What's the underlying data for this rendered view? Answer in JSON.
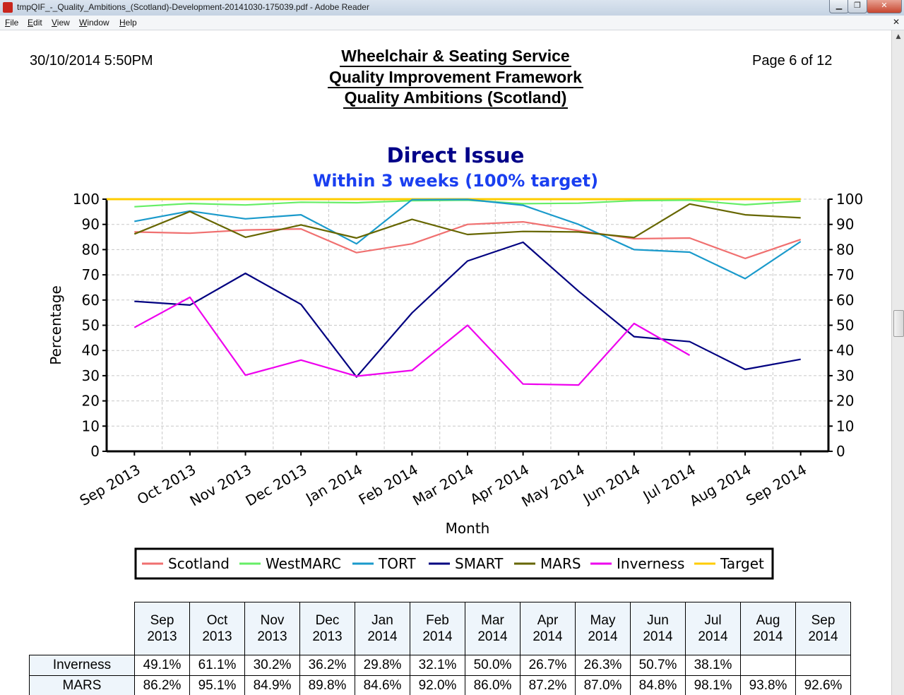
{
  "window": {
    "title": "tmpQIF_-_Quality_Ambitions_(Scotland)-Development-20141030-175039.pdf - Adobe Reader",
    "controls": {
      "minimize": "▁",
      "maximize": "❐",
      "close": "✕"
    }
  },
  "menubar": {
    "items": [
      "File",
      "Edit",
      "View",
      "Window",
      "Help"
    ]
  },
  "document": {
    "datetime": "30/10/2014 5:50PM",
    "page_info": "Page 6 of 12",
    "title_lines": [
      "Wheelchair & Seating Service",
      "Quality Improvement Framework",
      "Quality Ambitions (Scotland)"
    ]
  },
  "chart_data": {
    "type": "line",
    "title": "Direct Issue",
    "subtitle": "Within 3 weeks (100% target)",
    "xlabel": "Month",
    "ylabel": "Percentage",
    "ylim": [
      0,
      100
    ],
    "yticks": [
      0,
      10,
      20,
      30,
      40,
      50,
      60,
      70,
      80,
      90,
      100
    ],
    "grid": true,
    "legend_position": "bottom",
    "categories": [
      "Sep 2013",
      "Oct 2013",
      "Nov 2013",
      "Dec 2013",
      "Jan 2014",
      "Feb 2014",
      "Mar 2014",
      "Apr 2014",
      "May 2014",
      "Jun 2014",
      "Jul 2014",
      "Aug 2014",
      "Sep 2014"
    ],
    "series": [
      {
        "name": "Scotland",
        "color": "#f07070",
        "values": [
          87.0,
          86.5,
          87.8,
          88.2,
          78.8,
          82.3,
          90.0,
          91.0,
          87.5,
          84.3,
          84.6,
          76.5,
          84.0
        ]
      },
      {
        "name": "WestMARC",
        "color": "#66ee66",
        "values": [
          97.0,
          98.3,
          97.7,
          98.8,
          98.6,
          99.4,
          99.6,
          98.2,
          98.4,
          99.4,
          99.6,
          97.8,
          99.2
        ]
      },
      {
        "name": "TORT",
        "color": "#1a9acb",
        "values": [
          91.2,
          95.3,
          92.2,
          93.8,
          82.3,
          99.8,
          99.9,
          97.6,
          90.0,
          80.0,
          79.0,
          68.5,
          83.2
        ]
      },
      {
        "name": "SMART",
        "color": "#000080",
        "values": [
          59.5,
          58.0,
          70.6,
          58.3,
          29.5,
          54.9,
          75.5,
          82.9,
          63.5,
          45.5,
          43.5,
          32.5,
          36.5
        ]
      },
      {
        "name": "MARS",
        "color": "#666600",
        "values": [
          86.2,
          95.1,
          84.9,
          89.8,
          84.6,
          92.0,
          86.0,
          87.2,
          87.0,
          84.8,
          98.1,
          93.8,
          92.6
        ]
      },
      {
        "name": "Inverness",
        "color": "#ee00ee",
        "values": [
          49.1,
          61.1,
          30.2,
          36.2,
          29.8,
          32.1,
          50.0,
          26.7,
          26.3,
          50.7,
          38.1,
          null,
          null
        ]
      },
      {
        "name": "Target",
        "color": "#ffcc00",
        "values": [
          100,
          100,
          100,
          100,
          100,
          100,
          100,
          100,
          100,
          100,
          100,
          100,
          100
        ]
      }
    ]
  },
  "table": {
    "months": [
      [
        "Sep",
        "2013"
      ],
      [
        "Oct",
        "2013"
      ],
      [
        "Nov",
        "2013"
      ],
      [
        "Dec",
        "2013"
      ],
      [
        "Jan",
        "2014"
      ],
      [
        "Feb",
        "2014"
      ],
      [
        "Mar",
        "2014"
      ],
      [
        "Apr",
        "2014"
      ],
      [
        "May",
        "2014"
      ],
      [
        "Jun",
        "2014"
      ],
      [
        "Jul",
        "2014"
      ],
      [
        "Aug",
        "2014"
      ],
      [
        "Sep",
        "2014"
      ]
    ],
    "rows": [
      {
        "label": "Inverness",
        "cells": [
          "49.1%",
          "61.1%",
          "30.2%",
          "36.2%",
          "29.8%",
          "32.1%",
          "50.0%",
          "26.7%",
          "26.3%",
          "50.7%",
          "38.1%",
          "",
          ""
        ]
      },
      {
        "label": "MARS",
        "cells": [
          "86.2%",
          "95.1%",
          "84.9%",
          "89.8%",
          "84.6%",
          "92.0%",
          "86.0%",
          "87.2%",
          "87.0%",
          "84.8%",
          "98.1%",
          "93.8%",
          "92.6%"
        ]
      }
    ]
  }
}
